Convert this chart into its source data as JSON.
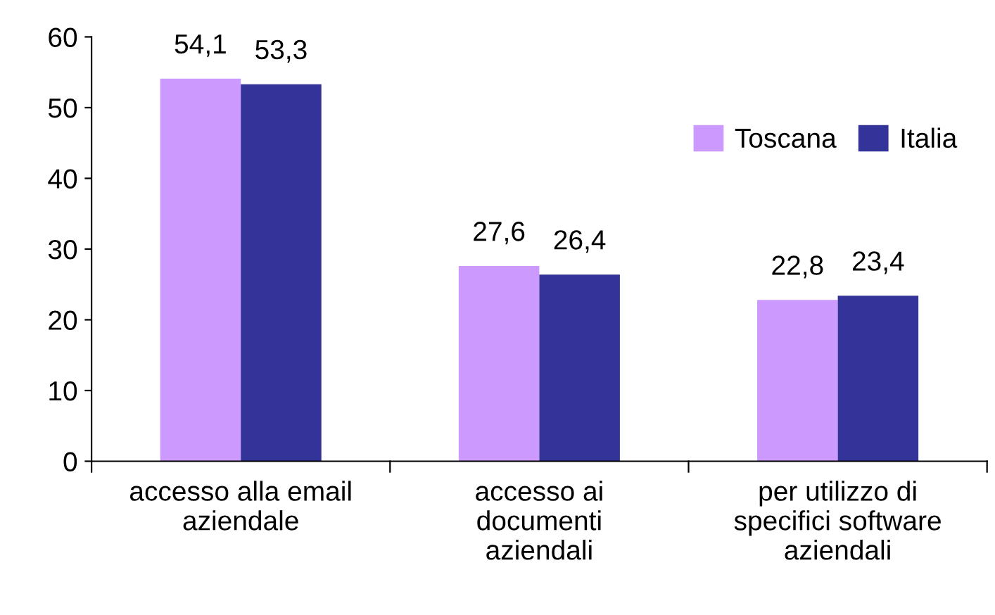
{
  "chart_data": {
    "type": "bar",
    "categories": [
      "accesso alla email\naziendale",
      "accesso ai\ndocumenti\naziendali",
      "per utilizzo di\nspecifici software\naziendali"
    ],
    "series": [
      {
        "name": "Toscana",
        "color": "#cc99ff",
        "values": [
          54.1,
          27.6,
          22.8
        ],
        "value_labels": [
          "54,1",
          "27,6",
          "22,8"
        ]
      },
      {
        "name": "Italia",
        "color": "#333399",
        "values": [
          53.3,
          26.4,
          23.4
        ],
        "value_labels": [
          "53,3",
          "26,4",
          "23,4"
        ]
      }
    ],
    "ylim": [
      0,
      60
    ],
    "yticks": [
      0,
      10,
      20,
      30,
      40,
      50,
      60
    ],
    "grid": false,
    "legend": "top right"
  }
}
